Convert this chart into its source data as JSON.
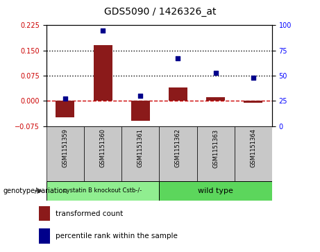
{
  "title": "GDS5090 / 1426326_at",
  "samples": [
    "GSM1151359",
    "GSM1151360",
    "GSM1151361",
    "GSM1151362",
    "GSM1151363",
    "GSM1151364"
  ],
  "transformed_count": [
    -0.05,
    0.165,
    -0.06,
    0.04,
    0.01,
    -0.005
  ],
  "percentile_rank": [
    27,
    95,
    30,
    67,
    53,
    48
  ],
  "ylim_left": [
    -0.075,
    0.225
  ],
  "ylim_right": [
    0,
    100
  ],
  "yticks_left": [
    -0.075,
    0,
    0.075,
    0.15,
    0.225
  ],
  "yticks_right": [
    0,
    25,
    50,
    75,
    100
  ],
  "hlines": [
    0.075,
    0.15
  ],
  "bar_color": "#8B1A1A",
  "scatter_color": "#00008B",
  "dashed_line_color": "#CC0000",
  "group1_label": "cystatin B knockout Cstb-/-",
  "group2_label": "wild type",
  "group1_indices": [
    0,
    1,
    2
  ],
  "group2_indices": [
    3,
    4,
    5
  ],
  "group1_color": "#90EE90",
  "group2_color": "#5CD65C",
  "genotype_label": "genotype/variation",
  "legend_bar_label": "transformed count",
  "legend_scatter_label": "percentile rank within the sample",
  "sample_bg_color": "#C8C8C8"
}
